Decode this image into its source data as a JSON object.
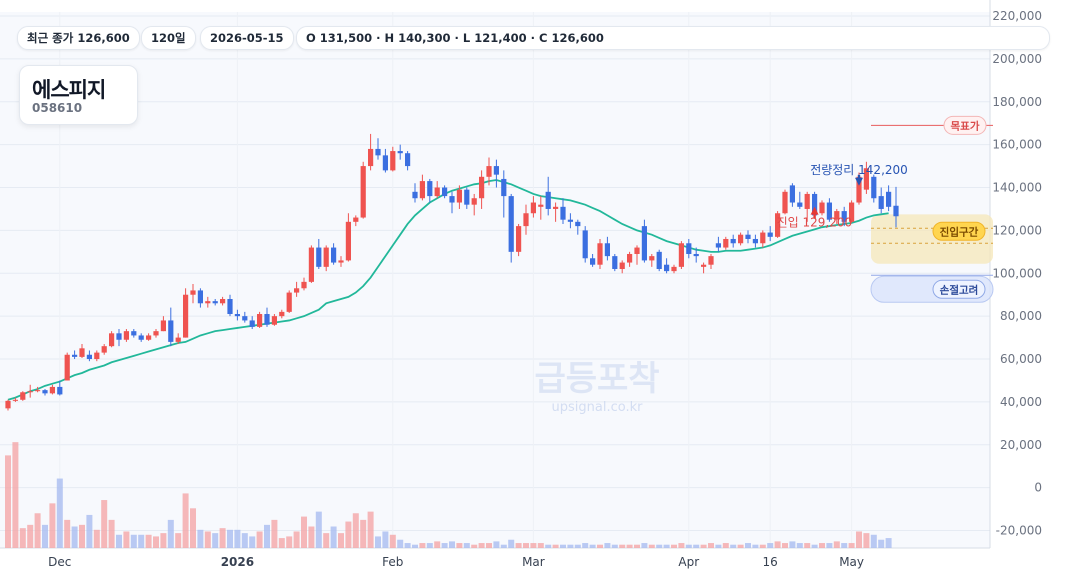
{
  "header": {
    "latest_volume": "최근 종가 126,600",
    "period": "120일",
    "date": "2026-05-15",
    "ohlc": "O 131,500 · H 140,300 · L 121,400 · C 126,600"
  },
  "stock": {
    "name": "에스피지",
    "code": "058610"
  },
  "watermark": {
    "title": "급등포착",
    "url": "upsignal.co.kr"
  },
  "colors": {
    "up": "#ef5350",
    "down": "#3b6fe0",
    "ma": "#22b89a",
    "target": "#e85d5d"
  },
  "chart_data": {
    "type": "candlestick",
    "y_axis": {
      "min": -30000,
      "max": 220000,
      "ticks": [
        "220,000",
        "200,000",
        "180,000",
        "160,000",
        "140,000",
        "120,000",
        "100,000",
        "80,000",
        "60,000",
        "40,000",
        "20,000",
        "0",
        "-20,000"
      ]
    },
    "x_axis": {
      "labels": [
        "Dec",
        "2026",
        "Feb",
        "Mar",
        "Apr",
        "16",
        "May"
      ]
    },
    "candles": [
      [
        37000,
        41000,
        36000,
        40500
      ],
      [
        40500,
        42000,
        40000,
        41000
      ],
      [
        41000,
        45000,
        40500,
        44500
      ],
      [
        44500,
        48000,
        42000,
        45000
      ],
      [
        45000,
        47000,
        44500,
        45500
      ],
      [
        45500,
        46000,
        43000,
        44000
      ],
      [
        44000,
        48000,
        43500,
        47000
      ],
      [
        47000,
        50000,
        43000,
        43500
      ],
      [
        50000,
        63000,
        50000,
        62000
      ],
      [
        62000,
        64000,
        60000,
        61000
      ],
      [
        61000,
        67000,
        60500,
        65000
      ],
      [
        62000,
        64000,
        59000,
        60000
      ],
      [
        60000,
        64000,
        59000,
        63000
      ],
      [
        63000,
        67000,
        62000,
        66000
      ],
      [
        66000,
        73000,
        65500,
        72000
      ],
      [
        72000,
        74000,
        66000,
        69000
      ],
      [
        69000,
        74000,
        68000,
        73000
      ],
      [
        73000,
        74000,
        70000,
        71000
      ],
      [
        71000,
        72000,
        68000,
        69000
      ],
      [
        69000,
        72000,
        68500,
        71000
      ],
      [
        71000,
        74000,
        70000,
        73000
      ],
      [
        73000,
        80000,
        73000,
        78000
      ],
      [
        78000,
        84000,
        66000,
        68000
      ],
      [
        68000,
        72000,
        67000,
        70000
      ],
      [
        70000,
        93000,
        70000,
        90000
      ],
      [
        90000,
        95000,
        86000,
        92000
      ],
      [
        92000,
        93000,
        84000,
        86000
      ],
      [
        86000,
        89000,
        84000,
        87000
      ],
      [
        87000,
        88000,
        85000,
        86000
      ],
      [
        86000,
        89000,
        85000,
        88000
      ],
      [
        88000,
        90000,
        80000,
        81000
      ],
      [
        81000,
        83000,
        78000,
        80000
      ],
      [
        80000,
        82000,
        77000,
        78000
      ],
      [
        78000,
        80000,
        74000,
        75000
      ],
      [
        75000,
        82000,
        74500,
        81000
      ],
      [
        81000,
        84000,
        75000,
        76000
      ],
      [
        76000,
        81000,
        75500,
        80000
      ],
      [
        80000,
        83000,
        79000,
        82000
      ],
      [
        82000,
        92000,
        81500,
        91000
      ],
      [
        91000,
        96000,
        89000,
        93000
      ],
      [
        93000,
        98000,
        92000,
        96000
      ],
      [
        96000,
        113000,
        95500,
        112000
      ],
      [
        112000,
        116000,
        102000,
        103000
      ],
      [
        103000,
        113000,
        101000,
        112000
      ],
      [
        112000,
        114000,
        104000,
        105000
      ],
      [
        105000,
        108000,
        103000,
        106000
      ],
      [
        106000,
        128000,
        105500,
        124000
      ],
      [
        124000,
        127000,
        122000,
        126000
      ],
      [
        126000,
        152000,
        125500,
        150000
      ],
      [
        150000,
        165000,
        148000,
        158000
      ],
      [
        158000,
        163000,
        153000,
        155000
      ],
      [
        155000,
        158000,
        147000,
        148000
      ],
      [
        148000,
        159000,
        147500,
        157000
      ],
      [
        157000,
        160000,
        153000,
        156000
      ],
      [
        156000,
        157000,
        148000,
        150000
      ],
      [
        138000,
        142000,
        133000,
        135000
      ],
      [
        135000,
        146000,
        134000,
        143000
      ],
      [
        143000,
        144000,
        133000,
        136000
      ],
      [
        136000,
        143000,
        135000,
        140000
      ],
      [
        140000,
        141000,
        135000,
        136000
      ],
      [
        136000,
        138000,
        128000,
        133000
      ],
      [
        133000,
        141000,
        130000,
        139000
      ],
      [
        139000,
        140000,
        130000,
        132000
      ],
      [
        132000,
        137000,
        127000,
        135000
      ],
      [
        135000,
        148000,
        130000,
        145000
      ],
      [
        145000,
        154000,
        141000,
        150000
      ],
      [
        150000,
        153000,
        140000,
        146000
      ],
      [
        144000,
        148000,
        126000,
        136000
      ],
      [
        136000,
        137000,
        105000,
        110000
      ],
      [
        110000,
        123000,
        108000,
        122000
      ],
      [
        122000,
        132000,
        118000,
        128000
      ],
      [
        128000,
        136000,
        126000,
        133000
      ],
      [
        131000,
        136000,
        125000,
        132000
      ],
      [
        138000,
        145000,
        127000,
        130000
      ],
      [
        130000,
        133000,
        124000,
        131000
      ],
      [
        131000,
        135000,
        123000,
        125000
      ],
      [
        125000,
        128000,
        121000,
        124000
      ],
      [
        124000,
        125000,
        118000,
        122000
      ],
      [
        120000,
        122000,
        105000,
        107000
      ],
      [
        107000,
        109000,
        103000,
        104000
      ],
      [
        104000,
        116000,
        102000,
        114000
      ],
      [
        114000,
        117000,
        106000,
        108000
      ],
      [
        108000,
        109000,
        101000,
        102000
      ],
      [
        102000,
        106000,
        100000,
        105000
      ],
      [
        105000,
        110000,
        103000,
        109000
      ],
      [
        109000,
        113000,
        104000,
        112000
      ],
      [
        122000,
        125000,
        105000,
        106000
      ],
      [
        106000,
        109000,
        103000,
        108000
      ],
      [
        110000,
        111000,
        101000,
        102000
      ],
      [
        104000,
        107000,
        100000,
        101000
      ],
      [
        101000,
        104000,
        100000,
        103000
      ],
      [
        103000,
        115000,
        102000,
        114000
      ],
      [
        114000,
        116000,
        107000,
        109000
      ],
      [
        109000,
        112000,
        105000,
        108000
      ],
      [
        103000,
        105000,
        100000,
        104000
      ],
      [
        104000,
        109000,
        102000,
        108000
      ],
      [
        114000,
        117000,
        110000,
        112000
      ],
      [
        112000,
        117000,
        111000,
        116000
      ],
      [
        116000,
        118000,
        112000,
        114000
      ],
      [
        114000,
        119000,
        113000,
        118000
      ],
      [
        118000,
        120000,
        114000,
        116000
      ],
      [
        116000,
        118000,
        112000,
        114000
      ],
      [
        114000,
        120000,
        112000,
        119000
      ],
      [
        119000,
        122000,
        115000,
        117000
      ],
      [
        117000,
        129000,
        116500,
        128000
      ],
      [
        128000,
        139000,
        127500,
        138000
      ],
      [
        141000,
        142000,
        131000,
        133000
      ],
      [
        133000,
        138000,
        130000,
        131000
      ],
      [
        130000,
        138000,
        124000,
        137000
      ],
      [
        137000,
        138000,
        126000,
        127000
      ],
      [
        128000,
        134000,
        127000,
        133000
      ],
      [
        133000,
        135000,
        124000,
        125000
      ],
      [
        125000,
        130000,
        123000,
        129000
      ],
      [
        129000,
        131000,
        122000,
        124000
      ],
      [
        124000,
        134000,
        123500,
        133000
      ],
      [
        133000,
        147000,
        132000,
        145000
      ],
      [
        139000,
        152000,
        137000,
        149000
      ],
      [
        145000,
        146000,
        133000,
        135000
      ],
      [
        136000,
        140000,
        128000,
        130000
      ],
      [
        138000,
        141000,
        129000,
        131000
      ],
      [
        131500,
        140300,
        121400,
        126600
      ]
    ],
    "ma": [
      41000,
      42000,
      43500,
      45000,
      46000,
      47500,
      48500,
      49500,
      51000,
      52500,
      53500,
      55000,
      56000,
      57000,
      58500,
      59500,
      60500,
      61500,
      62500,
      63500,
      64500,
      65500,
      66500,
      67500,
      68000,
      69500,
      71000,
      72000,
      73000,
      73500,
      74000,
      74500,
      75000,
      75500,
      76000,
      76500,
      77000,
      77500,
      78000,
      79000,
      80000,
      81500,
      83000,
      86000,
      87000,
      88000,
      89000,
      91000,
      94000,
      98000,
      103000,
      108000,
      113000,
      118000,
      123000,
      127000,
      130000,
      133000,
      135000,
      137000,
      138500,
      139500,
      140500,
      141500,
      142000,
      143000,
      143500,
      142500,
      141500,
      140000,
      138500,
      137000,
      136000,
      135500,
      135000,
      134500,
      134000,
      133000,
      132000,
      130500,
      129000,
      127000,
      125000,
      123000,
      121500,
      120000,
      119000,
      118000,
      116500,
      115000,
      114000,
      113000,
      112000,
      111000,
      110500,
      110000,
      110000,
      110500,
      110500,
      110500,
      111000,
      111500,
      112000,
      113000,
      114500,
      116000,
      117500,
      118500,
      119500,
      120500,
      121500,
      122000,
      122500,
      123000,
      123500,
      124500,
      126000,
      127000,
      127500,
      128000
    ],
    "volume": [
      0.56,
      0.64,
      0.12,
      0.14,
      0.21,
      0.14,
      0.27,
      0.42,
      0.17,
      0.13,
      0.14,
      0.2,
      0.11,
      0.29,
      0.17,
      0.08,
      0.1,
      0.08,
      0.08,
      0.08,
      0.07,
      0.09,
      0.17,
      0.09,
      0.33,
      0.24,
      0.11,
      0.1,
      0.09,
      0.12,
      0.11,
      0.11,
      0.09,
      0.07,
      0.1,
      0.14,
      0.17,
      0.06,
      0.07,
      0.1,
      0.19,
      0.13,
      0.22,
      0.09,
      0.13,
      0.09,
      0.16,
      0.21,
      0.17,
      0.22,
      0.07,
      0.1,
      0.08,
      0.05,
      0.03,
      0.02,
      0.03,
      0.03,
      0.04,
      0.03,
      0.04,
      0.03,
      0.03,
      0.02,
      0.03,
      0.03,
      0.04,
      0.02,
      0.05,
      0.03,
      0.03,
      0.03,
      0.03,
      0.02,
      0.02,
      0.02,
      0.02,
      0.02,
      0.03,
      0.02,
      0.02,
      0.03,
      0.02,
      0.02,
      0.02,
      0.02,
      0.03,
      0.02,
      0.02,
      0.02,
      0.02,
      0.03,
      0.02,
      0.02,
      0.02,
      0.03,
      0.02,
      0.03,
      0.02,
      0.02,
      0.03,
      0.02,
      0.02,
      0.03,
      0.04,
      0.03,
      0.04,
      0.03,
      0.03,
      0.02,
      0.03,
      0.03,
      0.04,
      0.03,
      0.03,
      0.1,
      0.09,
      0.08,
      0.05,
      0.06
    ],
    "annotations": {
      "target_price": {
        "label": "목표가",
        "value": 169000
      },
      "forecast_arrow": {
        "label": "전량정리 142,200",
        "value": 142200
      },
      "entry_arrow": {
        "label": "진입 129,200",
        "value": 129200
      },
      "entry_zone": {
        "label": "진입구간",
        "from": 104000,
        "to": 127000,
        "center": 114000
      },
      "stop_zone": {
        "label": "손절고려",
        "from": 94000,
        "to": 100000
      }
    }
  }
}
